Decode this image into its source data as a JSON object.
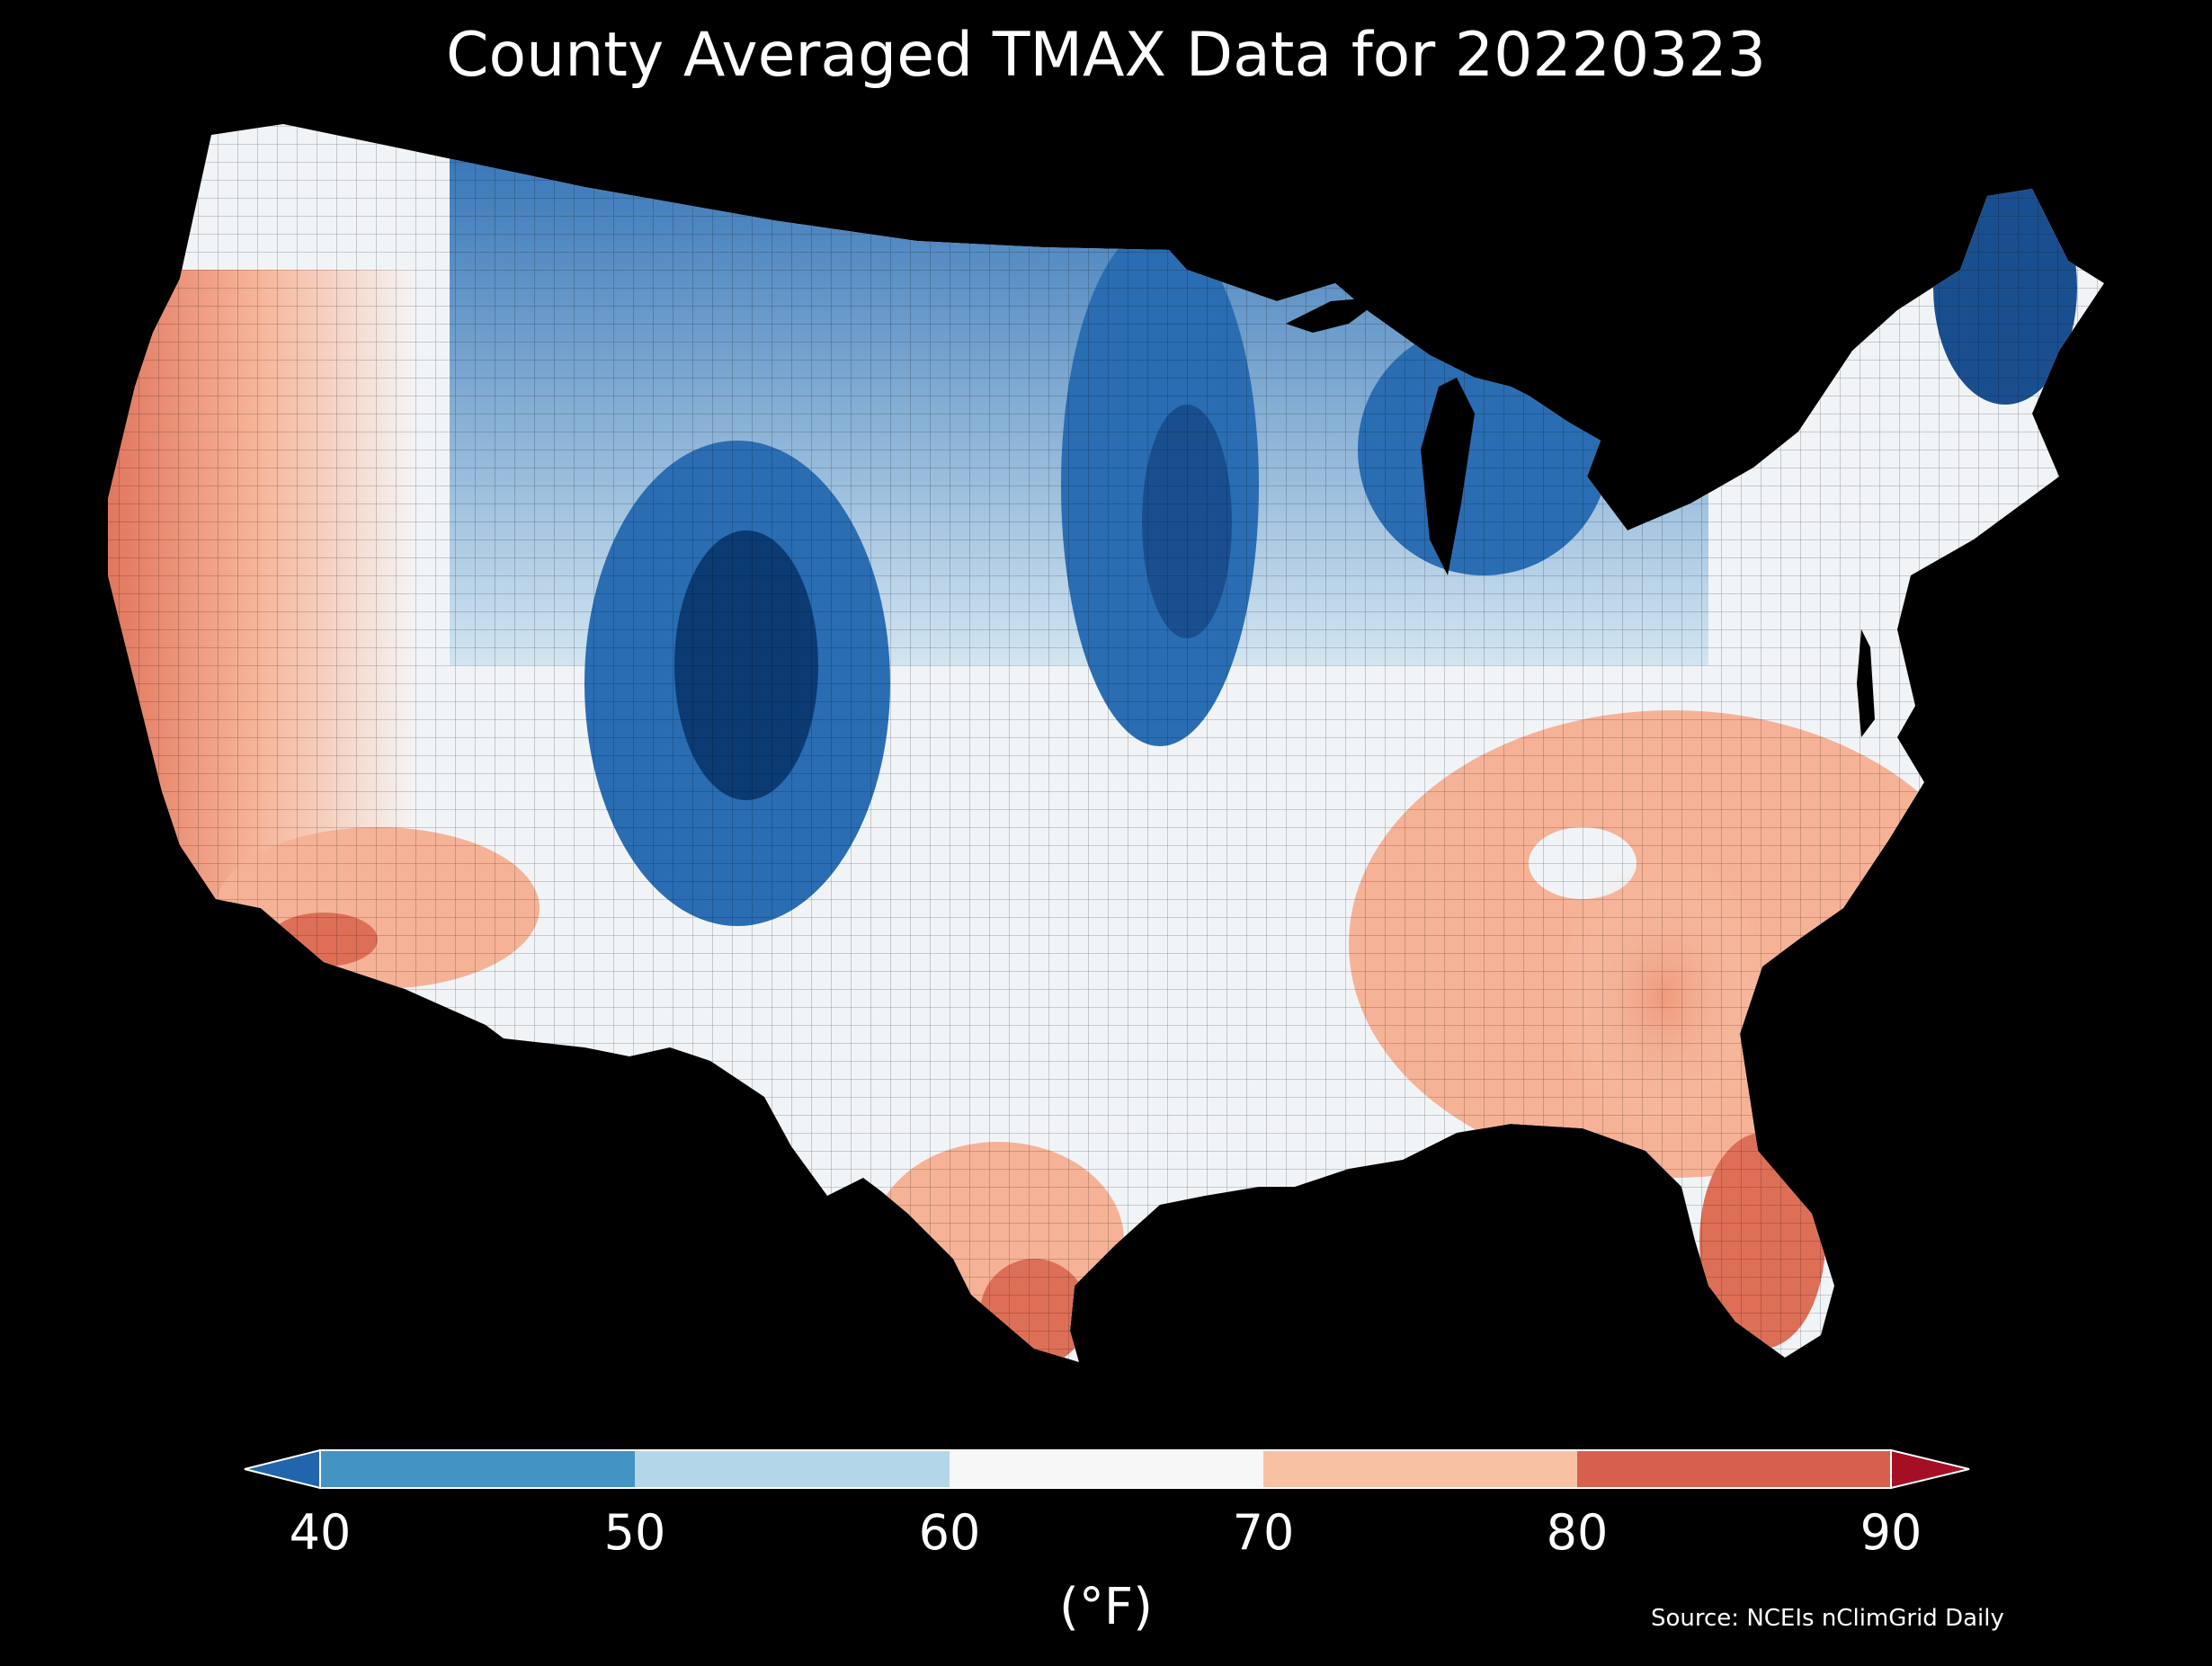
{
  "title": "County Averaged TMAX Data for 20220323",
  "colorbar": {
    "unit_label": "(°F)",
    "ticks": [
      "40",
      "50",
      "60",
      "70",
      "80",
      "90"
    ],
    "bins": [
      {
        "range": "<40",
        "color": "#2166ac"
      },
      {
        "range": "40-50",
        "color": "#4393c3"
      },
      {
        "range": "50-60",
        "color": "#b4d6e9"
      },
      {
        "range": "60-70",
        "color": "#f7f7f7"
      },
      {
        "range": "70-80",
        "color": "#f9c1a4"
      },
      {
        "range": "80-90",
        "color": "#d6604d"
      },
      {
        "range": ">90",
        "color": "#a50f26"
      }
    ],
    "extend": "both"
  },
  "source": "Source: NCEIs nClimGrid Daily",
  "map_colors": {
    "background": "#000000",
    "county_border": "#000000",
    "coldest": "#0b3b72",
    "cold": "#2a6db3",
    "cool": "#6fafd6",
    "mild": "#d2e5f1",
    "neutral": "#f5f3f2",
    "warm": "#f6b296",
    "hot": "#de6f57"
  }
}
